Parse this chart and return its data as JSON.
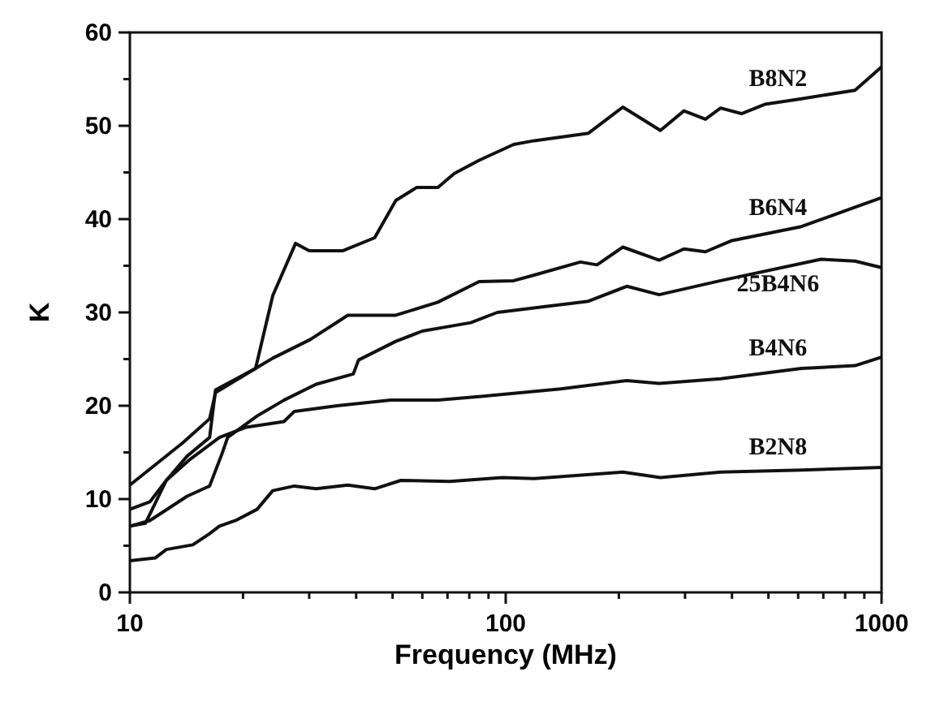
{
  "chart_data": {
    "type": "line",
    "xlabel": "Frequency (MHz)",
    "ylabel": "K",
    "log": "x",
    "grid": false,
    "legend": false,
    "marker": "none",
    "line_style": "solid",
    "xlim": [
      10,
      1000
    ],
    "ylim": [
      0,
      60
    ],
    "xticks": [
      10,
      {
        "value": 20,
        "label": null
      },
      {
        "value": 30,
        "label": null
      },
      {
        "value": 40,
        "label": null
      },
      {
        "value": 50,
        "label": null
      },
      {
        "value": 60,
        "label": null
      },
      {
        "value": 70,
        "label": null
      },
      {
        "value": 80,
        "label": null
      },
      {
        "value": 90,
        "label": null
      },
      100,
      {
        "value": 200,
        "label": null
      },
      {
        "value": 300,
        "label": null
      },
      {
        "value": 400,
        "label": null
      },
      {
        "value": 500,
        "label": null
      },
      {
        "value": 600,
        "label": null
      },
      {
        "value": 700,
        "label": null
      },
      {
        "value": 800,
        "label": null
      },
      {
        "value": 900,
        "label": null
      },
      1000
    ],
    "yticks": [
      0,
      {
        "value": 5,
        "label": null
      },
      10,
      {
        "value": 15,
        "label": null
      },
      20,
      {
        "value": 25,
        "label": null
      },
      30,
      {
        "value": 35,
        "label": null
      },
      40,
      {
        "value": 45,
        "label": null
      },
      50,
      {
        "value": 55,
        "label": null
      },
      60
    ],
    "series": [
      {
        "name": "B8N2",
        "color": "#111111",
        "x": [
          10,
          11,
          12.5,
          14.2,
          16.3,
          16.9,
          21.6,
          24,
          27.6,
          30,
          36.8,
          44.8,
          51,
          58,
          66,
          73,
          85,
          105,
          119,
          166,
          205,
          258,
          298,
          340,
          373,
          424,
          489,
          612,
          850,
          1000
        ],
        "values": [
          7.1,
          7.4,
          12.0,
          14.6,
          16.6,
          21.7,
          24.0,
          31.8,
          37.4,
          36.6,
          36.6,
          38.0,
          42.0,
          43.4,
          43.4,
          44.9,
          46.3,
          48.0,
          48.4,
          49.2,
          52.0,
          49.5,
          51.6,
          50.7,
          51.9,
          51.3,
          52.3,
          52.9,
          53.8,
          56.3
        ]
      },
      {
        "name": "B6N4",
        "color": "#111111",
        "x": [
          10,
          11.7,
          13.8,
          16.3,
          16.9,
          21.6,
          24,
          30.2,
          38,
          51,
          66,
          85,
          105,
          119,
          158,
          175,
          205,
          256,
          298,
          340,
          400,
          612,
          1000
        ],
        "values": [
          11.5,
          13.7,
          16.0,
          18.6,
          21.4,
          24.0,
          25.1,
          27.1,
          29.7,
          29.7,
          31.1,
          33.3,
          33.4,
          34.0,
          35.4,
          35.1,
          37.0,
          35.6,
          36.8,
          36.5,
          37.7,
          39.2,
          42.3
        ]
      },
      {
        "name": "25B4N6",
        "color": "#111111",
        "x": [
          10,
          11.3,
          14.2,
          16.3,
          17.6,
          18.2,
          21.8,
          25.7,
          31.3,
          39.3,
          40.6,
          51,
          60,
          80.7,
          95,
          166,
          210,
          256,
          373,
          690,
          850,
          1000
        ],
        "values": [
          7.1,
          7.7,
          10.3,
          11.4,
          14.9,
          16.6,
          18.9,
          20.6,
          22.3,
          23.4,
          24.9,
          26.9,
          28.0,
          28.9,
          30.0,
          31.2,
          32.8,
          31.9,
          33.4,
          35.7,
          35.5,
          34.8
        ]
      },
      {
        "name": "B4N6",
        "color": "#111111",
        "x": [
          10,
          11.3,
          12.5,
          14.5,
          17.3,
          20.4,
          25.7,
          27.4,
          35.6,
          49.4,
          66,
          86,
          140,
          210,
          256,
          373,
          612,
          850,
          1000
        ],
        "values": [
          8.9,
          9.7,
          12.0,
          14.3,
          16.6,
          17.7,
          18.3,
          19.4,
          20.0,
          20.6,
          20.6,
          21.0,
          21.8,
          22.7,
          22.4,
          22.9,
          24.0,
          24.3,
          25.2
        ]
      },
      {
        "name": "B2N8",
        "color": "#111111",
        "x": [
          10,
          11.7,
          12.5,
          14.7,
          16.3,
          17.3,
          19.1,
          21.8,
          24,
          27.4,
          31.3,
          38,
          44.8,
          52.6,
          71,
          98,
          119,
          205,
          258,
          373,
          612,
          1000
        ],
        "values": [
          3.4,
          3.7,
          4.6,
          5.1,
          6.3,
          7.1,
          7.7,
          8.9,
          10.9,
          11.4,
          11.1,
          11.5,
          11.1,
          12.0,
          11.9,
          12.3,
          12.2,
          12.9,
          12.3,
          12.9,
          13.1,
          13.4
        ]
      }
    ]
  }
}
